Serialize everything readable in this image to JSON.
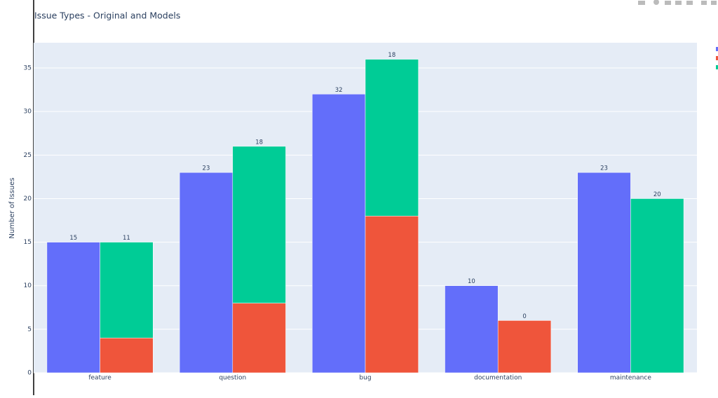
{
  "chart_data": {
    "type": "bar",
    "title": "Issue Types - Original and Models",
    "y_label": "Number of Issues",
    "categories": [
      "feature",
      "question",
      "bug",
      "documentation",
      "maintenance"
    ],
    "series": [
      {
        "color": "#636efa",
        "values": [
          15,
          23,
          32,
          10,
          23
        ],
        "labels": true
      },
      {
        "color": "#ef553b",
        "values": [
          4,
          8,
          18,
          6,
          0
        ],
        "labels": false
      },
      {
        "color": "#00cc96",
        "values": [
          11,
          18,
          18,
          0,
          20
        ],
        "labels": true
      }
    ],
    "ylim": [
      0,
      37.9
    ],
    "yticks": [
      0,
      5,
      10,
      15,
      20,
      25,
      30,
      35
    ],
    "grid": true
  }
}
